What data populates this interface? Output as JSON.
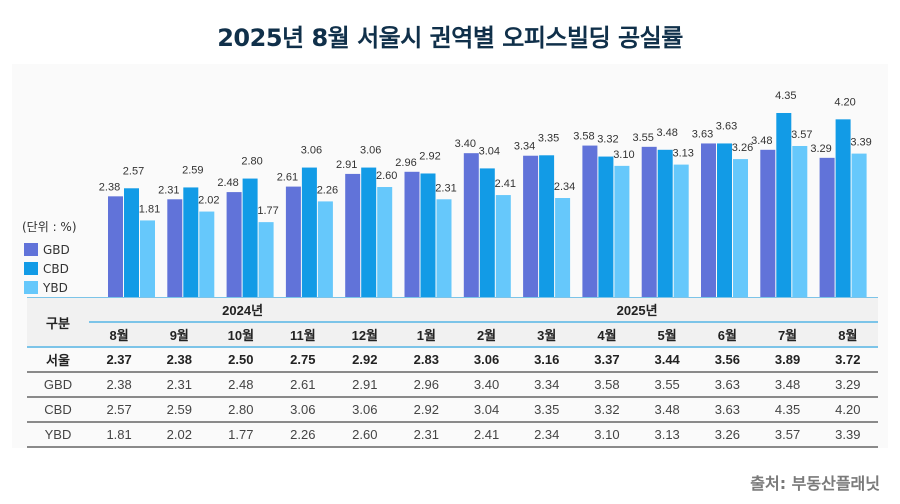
{
  "title": "2025년 8월 서울시 권역별 오피스빌딩 공실률",
  "unit_label": "(단위 : %)",
  "source": "출처: 부동산플래닛",
  "colors": {
    "GBD": "#6173d9",
    "CBD": "#129be6",
    "YBD": "#66c8fb"
  },
  "chart_data": {
    "type": "bar",
    "title": "2025년 8월 서울시 권역별 오피스빌딩 공실률",
    "xlabel": "",
    "ylabel": "(단위 : %)",
    "ylim": [
      0,
      4.6
    ],
    "grid": false,
    "legend": "left",
    "categories": [
      "8월",
      "9월",
      "10월",
      "11월",
      "12월",
      "1월",
      "2월",
      "3월",
      "4월",
      "5월",
      "6월",
      "7월",
      "8월"
    ],
    "series": [
      {
        "name": "GBD",
        "values": [
          2.38,
          2.31,
          2.48,
          2.61,
          2.91,
          2.96,
          3.4,
          3.34,
          3.58,
          3.55,
          3.63,
          3.48,
          3.29
        ]
      },
      {
        "name": "CBD",
        "values": [
          2.57,
          2.59,
          2.8,
          3.06,
          3.06,
          2.92,
          3.04,
          3.35,
          3.32,
          3.48,
          3.63,
          4.35,
          4.2
        ]
      },
      {
        "name": "YBD",
        "values": [
          1.81,
          2.02,
          1.77,
          2.26,
          2.6,
          2.31,
          2.41,
          2.34,
          3.1,
          3.13,
          3.26,
          3.57,
          3.39
        ]
      }
    ]
  },
  "table": {
    "corner": "구분",
    "year_groups": [
      {
        "label": "2024년",
        "span": 5
      },
      {
        "label": "2025년",
        "span": 8
      }
    ],
    "months": [
      "8월",
      "9월",
      "10월",
      "11월",
      "12월",
      "1월",
      "2월",
      "3월",
      "4월",
      "5월",
      "6월",
      "7월",
      "8월"
    ],
    "rows": [
      {
        "label": "서울",
        "values": [
          "2.37",
          "2.38",
          "2.50",
          "2.75",
          "2.92",
          "2.83",
          "3.06",
          "3.16",
          "3.37",
          "3.44",
          "3.56",
          "3.89",
          "3.72"
        ]
      },
      {
        "label": "GBD",
        "values": [
          "2.38",
          "2.31",
          "2.48",
          "2.61",
          "2.91",
          "2.96",
          "3.40",
          "3.34",
          "3.58",
          "3.55",
          "3.63",
          "3.48",
          "3.29"
        ]
      },
      {
        "label": "CBD",
        "values": [
          "2.57",
          "2.59",
          "2.80",
          "3.06",
          "3.06",
          "2.92",
          "3.04",
          "3.35",
          "3.32",
          "3.48",
          "3.63",
          "4.35",
          "4.20"
        ]
      },
      {
        "label": "YBD",
        "values": [
          "1.81",
          "2.02",
          "1.77",
          "2.26",
          "2.60",
          "2.31",
          "2.41",
          "2.34",
          "3.10",
          "3.13",
          "3.26",
          "3.57",
          "3.39"
        ]
      }
    ]
  }
}
